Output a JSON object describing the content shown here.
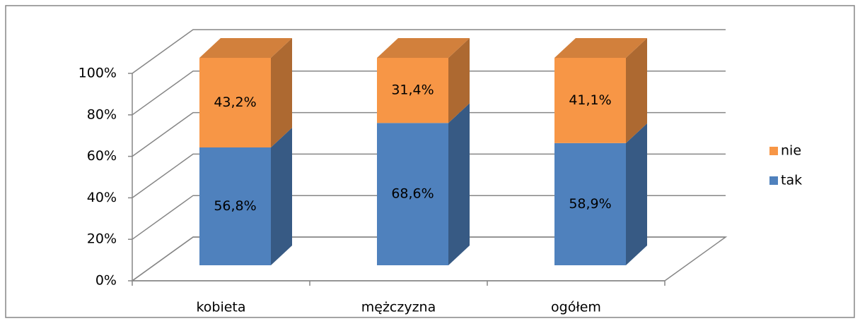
{
  "chart_data": {
    "type": "bar3d_stacked",
    "categories": [
      "kobieta",
      "mężczyzna",
      "ogółem"
    ],
    "series": [
      {
        "name": "tak",
        "color": "#4f81bd",
        "values": [
          56.8,
          68.6,
          58.9
        ],
        "value_labels": [
          "56,8%",
          "68,6%",
          "58,9%"
        ]
      },
      {
        "name": "nie",
        "color": "#f79646",
        "values": [
          43.2,
          31.4,
          41.1
        ],
        "value_labels": [
          "43,2%",
          "31,4%",
          "41,1%"
        ]
      }
    ],
    "ylim": [
      0,
      100
    ],
    "yticks": [
      {
        "value": 0,
        "label": "0%"
      },
      {
        "value": 20,
        "label": "20%"
      },
      {
        "value": 40,
        "label": "40%"
      },
      {
        "value": 60,
        "label": "60%"
      },
      {
        "value": 80,
        "label": "80%"
      },
      {
        "value": 100,
        "label": "100%"
      }
    ],
    "grid": true,
    "legend": "right"
  }
}
